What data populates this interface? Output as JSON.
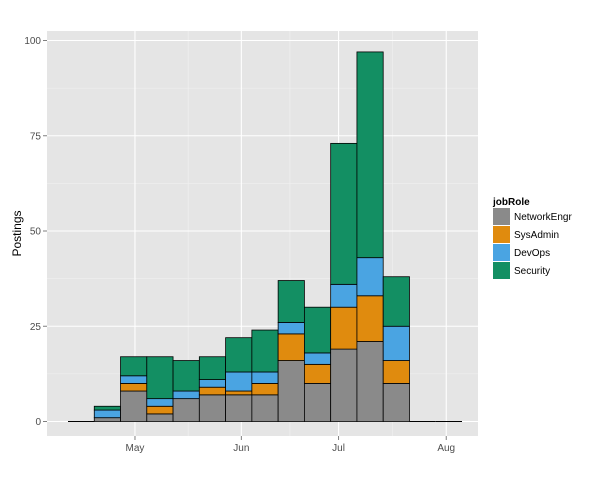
{
  "chart_data": {
    "type": "bar",
    "stacked": true,
    "title": "",
    "xlabel": "",
    "ylabel": "Postings",
    "ylim": [
      0,
      100
    ],
    "y_ticks": [
      0,
      25,
      50,
      75,
      100
    ],
    "x_ticks": [
      "May",
      "Jun",
      "Jul",
      "Aug"
    ],
    "x_tick_positions": [
      2.05,
      6.1,
      9.8,
      13.9
    ],
    "categories": [
      "1",
      "2",
      "3",
      "4",
      "5",
      "6",
      "7",
      "8",
      "9",
      "10",
      "11",
      "12",
      "13",
      "14",
      "15"
    ],
    "xlim": [
      -0.8,
      15.7
    ],
    "grid": true,
    "legend_title": "jobRole",
    "legend_position": "right",
    "series": [
      {
        "name": "NetworkEngr",
        "color": "#8a8a8a",
        "values": [
          0,
          1,
          8,
          2,
          6,
          7,
          7,
          7,
          16,
          10,
          19,
          21,
          10,
          0,
          0
        ]
      },
      {
        "name": "SysAdmin",
        "color": "#e08b0e",
        "values": [
          0,
          0,
          2,
          2,
          0,
          2,
          1,
          3,
          7,
          5,
          11,
          12,
          6,
          0,
          0
        ]
      },
      {
        "name": "DevOps",
        "color": "#4aa4e2",
        "values": [
          0,
          2,
          2,
          2,
          2,
          2,
          5,
          3,
          3,
          3,
          6,
          10,
          9,
          0,
          0
        ]
      },
      {
        "name": "Security",
        "color": "#138f63",
        "values": [
          0,
          1,
          5,
          11,
          8,
          6,
          9,
          11,
          11,
          12,
          37,
          54,
          13,
          0,
          0
        ]
      }
    ]
  }
}
